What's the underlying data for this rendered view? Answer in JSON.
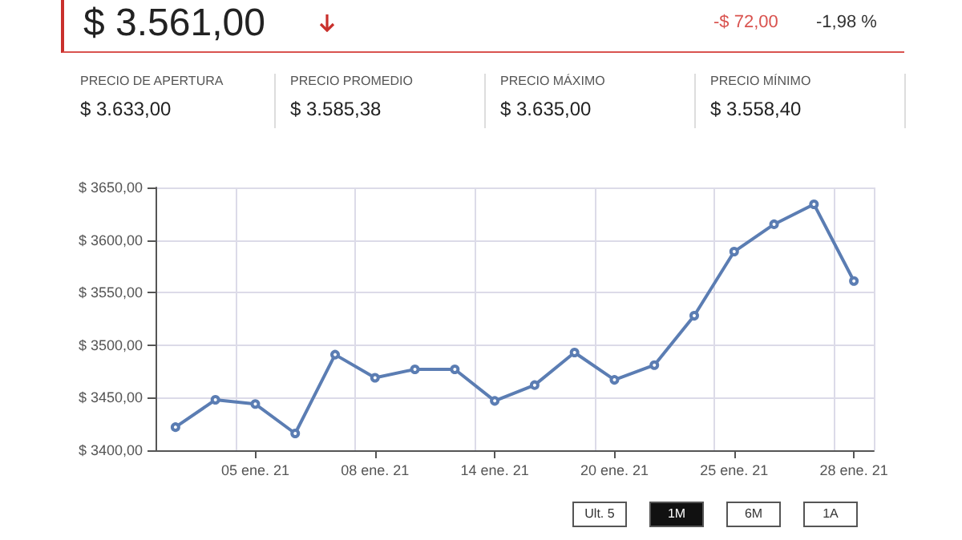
{
  "chart_data": [
    {
      "type": "other",
      "annotations": [
        "$ 3.561,00",
        "-$ 72,00",
        "-1,98 %",
        "PRECIO DE APERTURA",
        "$ 3.633,00",
        "PRECIO PROMEDIO",
        "$ 3.585,38",
        "PRECIO MÁXIMO",
        "$ 3.635,00",
        "PRECIO MÍNIMO",
        "$ 3.558,40"
      ]
    },
    {
      "type": "line",
      "categories": [
        null,
        null,
        "05 ene. 21",
        null,
        null,
        "08 ene. 21",
        null,
        null,
        "14 ene. 21",
        null,
        null,
        "20 ene. 21",
        null,
        null,
        "25 ene. 21",
        null,
        null,
        "28 ene. 21"
      ],
      "series": [
        {
          "color": "#5b7db3",
          "values": [
            3422,
            3448,
            3444,
            3416,
            3491,
            3469,
            3477,
            3477,
            3447,
            3462,
            3493,
            3467,
            3481,
            3528,
            3589,
            3615,
            3634,
            3561
          ]
        }
      ],
      "ylim": [
        3400,
        3650
      ],
      "yticks": [
        {
          "value": 3400,
          "label": "$ 3400,00"
        },
        {
          "value": 3450,
          "label": "$ 3450,00"
        },
        {
          "value": 3500,
          "label": "$ 3500,00"
        },
        {
          "value": 3550,
          "label": "$ 3550,00"
        },
        {
          "value": 3600,
          "label": "$ 3600,00"
        },
        {
          "value": 3650,
          "label": "$ 3650,00"
        }
      ],
      "grid": true,
      "marker": "circle",
      "line_style": "solid",
      "annotations": [
        "Ult. 5",
        "1M",
        "6M",
        "1A"
      ]
    }
  ]
}
